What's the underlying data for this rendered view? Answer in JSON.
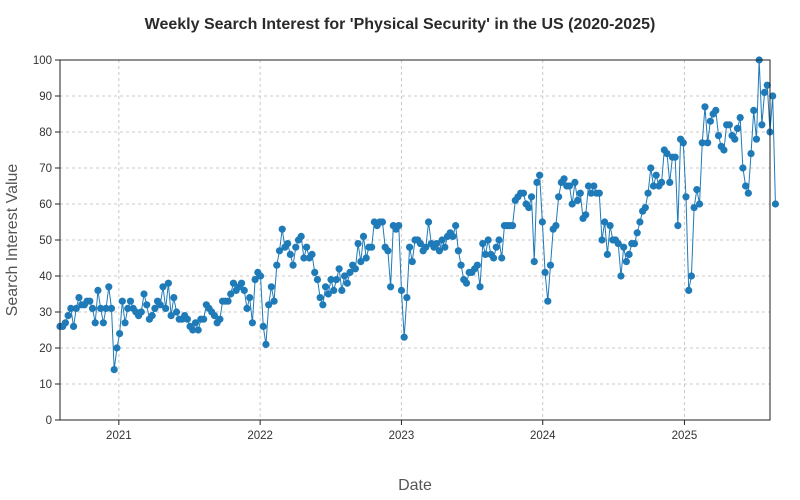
{
  "chart_data": {
    "type": "line",
    "title": "Weekly Search Interest for 'Physical Security' in the US (2020-2025)",
    "xlabel": "Date",
    "ylabel": "Search Interest Value",
    "xlim": [
      "2020-08-02",
      "2025-08-10"
    ],
    "ylim": [
      0,
      100
    ],
    "x_ticks": [
      "2021",
      "2022",
      "2023",
      "2024",
      "2025"
    ],
    "y_ticks": [
      "0",
      "10",
      "20",
      "30",
      "40",
      "50",
      "60",
      "70",
      "80",
      "90",
      "100"
    ],
    "grid": true,
    "marker": "circle",
    "colors": {
      "series": "#1f7ab8",
      "grid": "#c8c8c8",
      "frame": "#222222"
    },
    "series": [
      {
        "start_date": "2020-08-02",
        "interval_days": 7,
        "values": [
          26,
          26,
          27,
          29,
          31,
          26,
          31,
          34,
          32,
          32,
          33,
          33,
          31,
          27,
          36,
          31,
          27,
          31,
          37,
          31,
          14,
          20,
          24,
          33,
          27,
          31,
          33,
          31,
          30,
          29,
          30,
          35,
          32,
          28,
          29,
          31,
          33,
          32,
          37,
          31,
          38,
          29,
          34,
          30,
          28,
          28,
          29,
          28,
          26,
          25,
          27,
          25,
          28,
          28,
          32,
          31,
          30,
          29,
          27,
          28,
          33,
          33,
          33,
          35,
          38,
          36,
          37,
          38,
          36,
          31,
          34,
          27,
          39,
          41,
          40,
          26,
          21,
          32,
          37,
          33,
          43,
          47,
          53,
          48,
          49,
          46,
          43,
          48,
          50,
          51,
          45,
          48,
          45,
          46,
          41,
          39,
          34,
          32,
          37,
          35,
          39,
          36,
          39,
          42,
          36,
          40,
          38,
          41,
          43,
          42,
          49,
          44,
          51,
          45,
          48,
          48,
          55,
          54,
          55,
          55,
          48,
          47,
          37,
          54,
          53,
          54,
          36,
          23,
          34,
          48,
          44,
          50,
          50,
          49,
          47,
          48,
          55,
          49,
          48,
          49,
          47,
          50,
          48,
          51,
          52,
          51,
          54,
          47,
          43,
          39,
          38,
          41,
          41,
          42,
          43,
          37,
          49,
          46,
          50,
          46,
          45,
          48,
          50,
          45,
          54,
          54,
          54,
          54,
          61,
          62,
          63,
          63,
          60,
          59,
          62,
          44,
          66,
          68,
          55,
          41,
          33,
          43,
          53,
          54,
          62,
          66,
          67,
          65,
          65,
          60,
          66,
          61,
          63,
          56,
          57,
          65,
          63,
          65,
          63,
          63,
          50,
          55,
          46,
          54,
          50,
          50,
          49,
          40,
          48,
          44,
          46,
          49,
          49,
          52,
          55,
          58,
          59,
          63,
          70,
          65,
          68,
          65,
          66,
          75,
          74,
          66,
          73,
          73,
          54,
          78,
          77,
          62,
          36,
          40,
          59,
          64,
          60,
          77,
          87,
          77,
          83,
          85,
          86,
          79,
          76,
          75,
          82,
          82,
          79,
          78,
          81,
          84,
          70,
          65,
          63,
          74,
          86,
          78,
          100,
          82,
          91,
          93,
          80,
          90,
          60
        ]
      }
    ]
  }
}
